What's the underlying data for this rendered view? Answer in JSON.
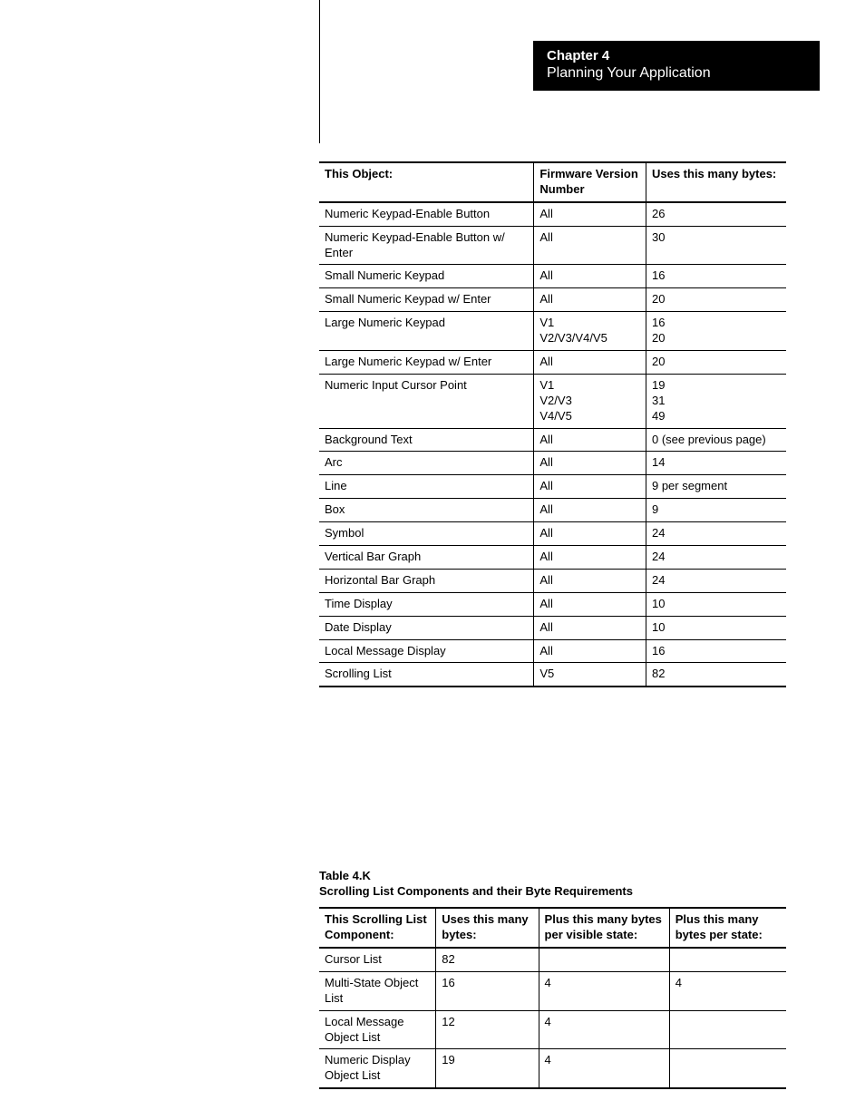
{
  "chapter": {
    "title": "Chapter 4",
    "subtitle": "Planning Your Application"
  },
  "table1": {
    "columns": [
      "This Object:",
      "Firmware Version Number",
      "Uses this many bytes:"
    ],
    "rows": [
      [
        "Numeric Keypad-Enable Button",
        "All",
        "26"
      ],
      [
        "Numeric Keypad-Enable Button w/ Enter",
        "All",
        "30"
      ],
      [
        "Small Numeric Keypad",
        "All",
        "16"
      ],
      [
        "Small Numeric Keypad w/ Enter",
        "All",
        "20"
      ],
      [
        "Large Numeric Keypad",
        "V1\nV2/V3/V4/V5",
        "16\n20"
      ],
      [
        "Large Numeric Keypad w/ Enter",
        "All",
        "20"
      ],
      [
        "Numeric Input Cursor Point",
        "V1\nV2/V3\nV4/V5",
        "19\n31\n49"
      ],
      [
        "Background Text",
        "All",
        "0 (see previous page)"
      ],
      [
        "Arc",
        "All",
        "14"
      ],
      [
        "Line",
        "All",
        "9 per segment"
      ],
      [
        "Box",
        "All",
        "9"
      ],
      [
        "Symbol",
        "All",
        "24"
      ],
      [
        "Vertical Bar Graph",
        "All",
        "24"
      ],
      [
        "Horizontal Bar Graph",
        "All",
        "24"
      ],
      [
        "Time Display",
        "All",
        "10"
      ],
      [
        "Date Display",
        "All",
        "10"
      ],
      [
        "Local Message Display",
        "All",
        "16"
      ],
      [
        "Scrolling List",
        "V5",
        "82"
      ]
    ]
  },
  "section2": {
    "label": "Table 4.K",
    "title": "Scrolling List Components and their Byte Requirements"
  },
  "table2": {
    "columns": [
      "This Scrolling List Component:",
      "Uses this many bytes:",
      "Plus this many bytes per visible state:",
      "Plus this many bytes per state:"
    ],
    "rows": [
      [
        "Cursor List",
        "82",
        "",
        ""
      ],
      [
        "Multi-State Object List",
        "16",
        "4",
        "4"
      ],
      [
        "Local Message Object List",
        "12",
        "4",
        ""
      ],
      [
        "Numeric Display Object List",
        "19",
        "4",
        ""
      ]
    ]
  }
}
